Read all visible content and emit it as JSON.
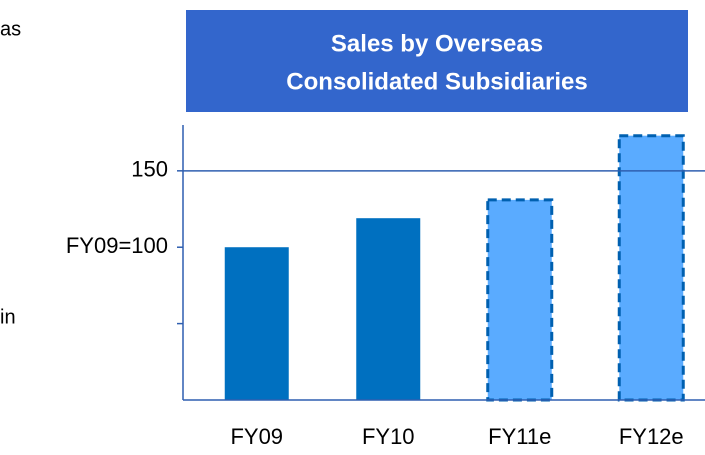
{
  "chart_data": {
    "type": "bar",
    "title": [
      "Sales by Overseas",
      "Consolidated Subsidiaries"
    ],
    "side_text": [
      "as",
      "in"
    ],
    "categories": [
      "FY09",
      "FY10",
      "FY11e",
      "FY12e"
    ],
    "values": [
      100,
      119,
      131,
      173
    ],
    "colors": [
      "#0070c0",
      "#0070c0",
      "#5aabff",
      "#5aabff"
    ],
    "dashed": [
      false,
      false,
      true,
      true
    ],
    "ylim": [
      0,
      180
    ],
    "yticks": [
      {
        "value": 50,
        "label": null
      },
      {
        "value": 100,
        "label": "FY09=100"
      },
      150
    ],
    "reference_line": 150
  }
}
